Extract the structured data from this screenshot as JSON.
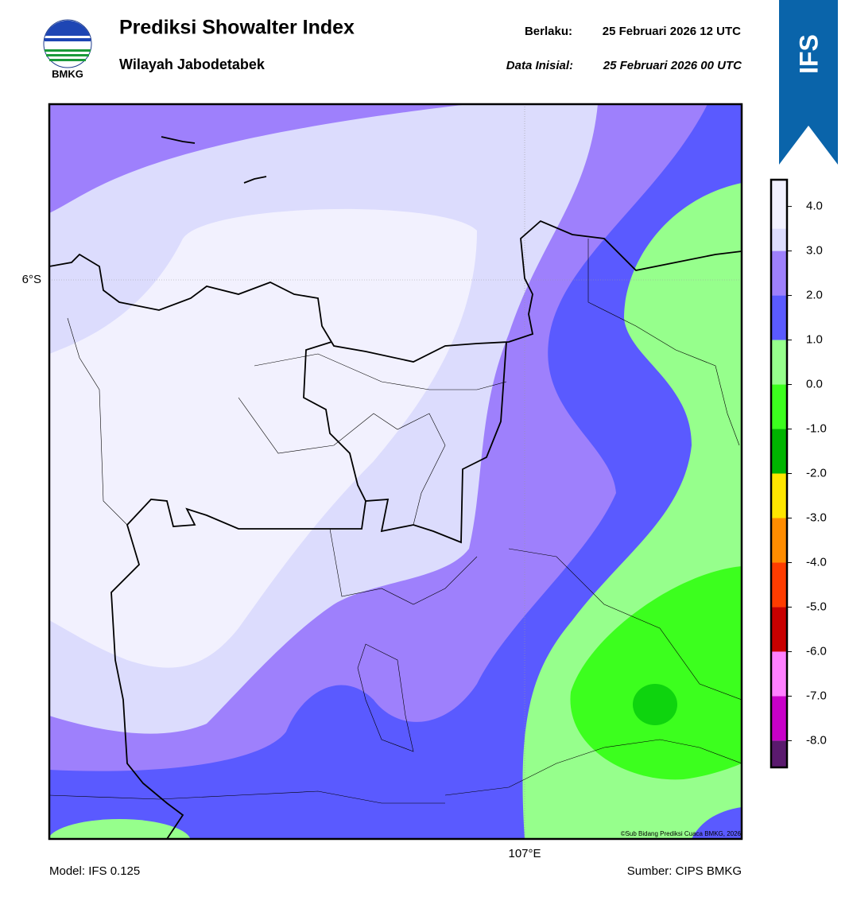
{
  "header": {
    "title": "Prediksi Showalter Index",
    "subtitle": "Wilayah Jabodetabek",
    "valid_label": "Berlaku:",
    "valid_value": "25 Februari 2026 12 UTC",
    "init_label": "Data Inisial:",
    "init_value": "25 Februari 2026 00 UTC",
    "logo_text": "BMKG",
    "badge": "IFS"
  },
  "map": {
    "lat_label": "6°S",
    "lon_label": "107°E",
    "credit": "©Sub Bidang Prediksi Cuaca BMKG, 2026"
  },
  "footer": {
    "model": "Model: IFS 0.125",
    "source": "Sumber: CIPS BMKG"
  },
  "colorbar": {
    "lim": [
      -8.6,
      4.6
    ],
    "bounds": [
      -8.6,
      -8,
      -7,
      -6,
      -5,
      -4,
      -3,
      -2,
      -1,
      0,
      1,
      2,
      3,
      3.5,
      4.6
    ],
    "colors": [
      "#5a1a6e",
      "#c800c8",
      "#ff80ff",
      "#c80000",
      "#ff3c00",
      "#ff8c00",
      "#ffe600",
      "#00b400",
      "#3cff1e",
      "#96ff8c",
      "#5a5aff",
      "#9e80fc",
      "#dcdcfd",
      "#f2f1fe"
    ],
    "ticks": [
      {
        "value": 4,
        "label": "4.0"
      },
      {
        "value": 3,
        "label": "3.0"
      },
      {
        "value": 2,
        "label": "2.0"
      },
      {
        "value": 1,
        "label": "1.0"
      },
      {
        "value": 0,
        "label": "0.0"
      },
      {
        "value": -1,
        "label": "-1.0"
      },
      {
        "value": -2,
        "label": "-2.0"
      },
      {
        "value": -3,
        "label": "-3.0"
      },
      {
        "value": -4,
        "label": "-4.0"
      },
      {
        "value": -5,
        "label": "-5.0"
      },
      {
        "value": -6,
        "label": "-6.0"
      },
      {
        "value": -7,
        "label": "-7.0"
      },
      {
        "value": -8,
        "label": "-8.0"
      }
    ]
  }
}
